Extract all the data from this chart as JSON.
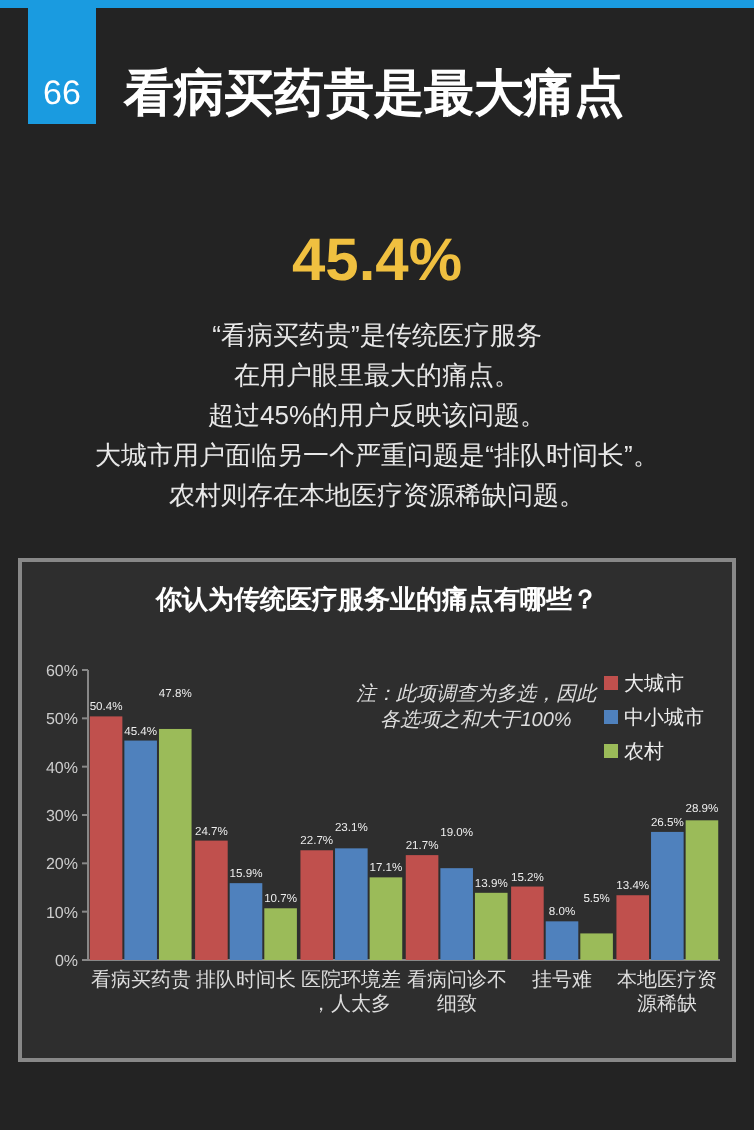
{
  "chart_data": {
    "type": "bar",
    "title": "看病买药贵是最大痛点",
    "subtitle": "你认为传统医疗服务业的痛点有哪些？",
    "annotations": [
      "66",
      "45.4%",
      "“看病买药贵”是传统医疗服务",
      "在用户眼里最大的痛点。",
      "超过45%的用户反映该问题。",
      "大城市用户面临另一个严重问题是“排队时间长”。",
      "农村则存在本地医疗资源稀缺问题。",
      "注：此项调查为多选，因此各选项之和大于100%"
    ],
    "categories": [
      "看病买药贵",
      "排队时间长",
      "医院环境差，人太多",
      "看病问诊不细致",
      "挂号难",
      "本地医疗资源稀缺"
    ],
    "series": [
      {
        "name": "大城市",
        "color": "#c0504d",
        "values": [
          50.4,
          24.7,
          22.7,
          21.7,
          15.2,
          13.4
        ],
        "value_labels": [
          "50.4%",
          "24.7%",
          "22.7%",
          "21.7%",
          "15.2%",
          "13.4%"
        ]
      },
      {
        "name": "中小城市",
        "color": "#4f81bd",
        "values": [
          45.4,
          15.9,
          23.1,
          19.0,
          8.0,
          26.5
        ],
        "value_labels": [
          "45.4%",
          "15.9%",
          "23.1%",
          "19.0%",
          "8.0%",
          "26.5%"
        ]
      },
      {
        "name": "农村",
        "color": "#9bbb59",
        "values": [
          47.8,
          10.7,
          17.1,
          13.9,
          5.5,
          28.9
        ],
        "value_labels": [
          "47.8%",
          "10.7%",
          "17.1%",
          "13.9%",
          "5.5%",
          "28.9%"
        ]
      }
    ],
    "ylim": [
      0,
      60
    ],
    "yticks": [
      {
        "value": 0,
        "label": "0%"
      },
      {
        "value": 10,
        "label": "10%"
      },
      {
        "value": 20,
        "label": "20%"
      },
      {
        "value": 30,
        "label": "30%"
      },
      {
        "value": 40,
        "label": "40%"
      },
      {
        "value": 50,
        "label": "50%"
      },
      {
        "value": 60,
        "label": "60%"
      }
    ],
    "legend": "top right",
    "grid": false
  }
}
